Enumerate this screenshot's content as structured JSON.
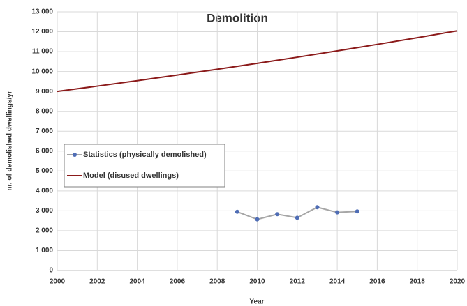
{
  "chart_data": {
    "type": "line",
    "title": "Demolition",
    "xlabel": "Year",
    "ylabel": "nr. of demolished dwellings/yr",
    "xlim": [
      2000,
      2020
    ],
    "xticks": [
      2000,
      2002,
      2004,
      2006,
      2008,
      2010,
      2012,
      2014,
      2016,
      2018,
      2020
    ],
    "ylim": [
      0,
      13000
    ],
    "yticks": [
      0,
      {
        "value": 1000,
        "label": "1 000"
      },
      {
        "value": 2000,
        "label": "2 000"
      },
      {
        "value": 3000,
        "label": "3 000"
      },
      {
        "value": 4000,
        "label": "4 000"
      },
      {
        "value": 5000,
        "label": "5 000"
      },
      {
        "value": 6000,
        "label": "6 000"
      },
      {
        "value": 7000,
        "label": "7 000"
      },
      {
        "value": 8000,
        "label": "8 000"
      },
      {
        "value": 9000,
        "label": "9 000"
      },
      {
        "value": 10000,
        "label": "10 000"
      },
      {
        "value": 11000,
        "label": "11 000"
      },
      {
        "value": 12000,
        "label": "12 000"
      },
      {
        "value": 13000,
        "label": "13 000"
      }
    ],
    "grid": true,
    "series": [
      {
        "name": "Statistics (physically demolished)",
        "color": "#a6a6a6",
        "marker_color": "#4f6db5",
        "x": [
          2009,
          2010,
          2011,
          2012,
          2013,
          2014,
          2015
        ],
        "values": [
          2950,
          2570,
          2830,
          2650,
          3180,
          2920,
          2970
        ]
      },
      {
        "name": "Model (disused dwellings)",
        "color": "#8b1a1a",
        "x": [
          2000,
          2002,
          2004,
          2006,
          2008,
          2010,
          2012,
          2014,
          2016,
          2018,
          2020
        ],
        "values": [
          9000,
          9266,
          9540,
          9823,
          10113,
          10412,
          10720,
          11037,
          11364,
          11700,
          12046
        ]
      }
    ]
  }
}
